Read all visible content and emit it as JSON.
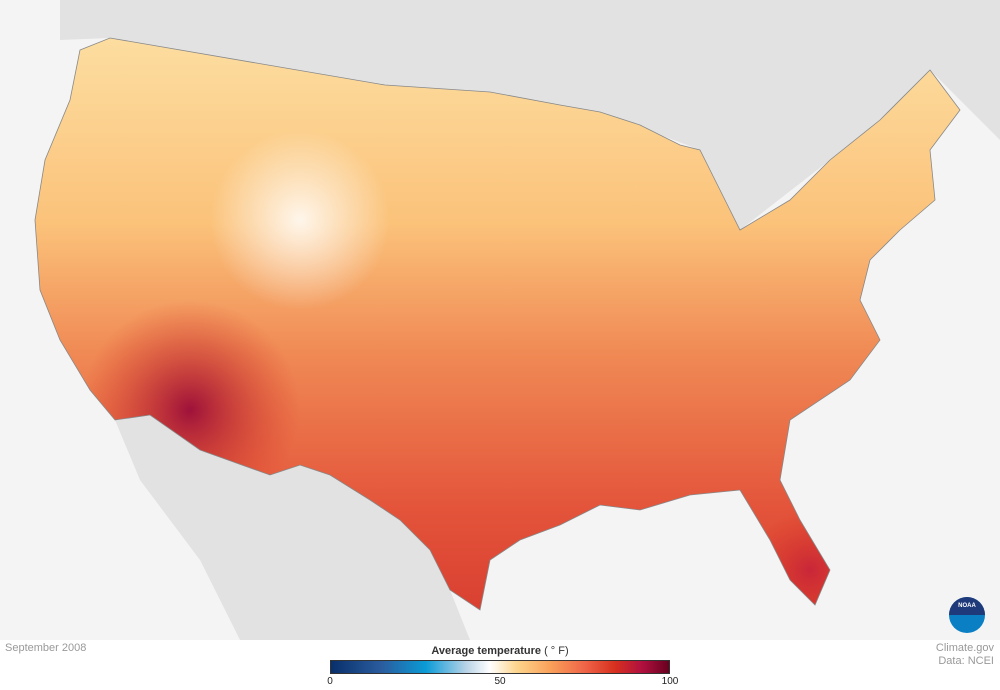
{
  "map": {
    "title": "September 2008",
    "region": "Contiguous United States"
  },
  "legend": {
    "title": "Average temperature",
    "unit": "( ° F)",
    "min": "0",
    "mid": "50",
    "max": "100",
    "colors": [
      "#08306b",
      "#0a9bd6",
      "#ffffff",
      "#fdd58c",
      "#ef6548",
      "#b0103f",
      "#67001f"
    ]
  },
  "credit": {
    "line1": "Climate.gov",
    "line2": "Data: NCEI",
    "logo": "NOAA"
  }
}
